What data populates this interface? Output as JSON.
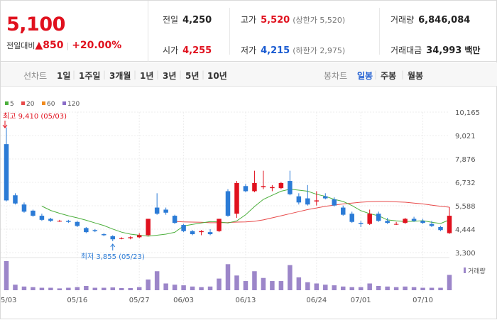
{
  "summary": {
    "price": "5,100",
    "change_label": "전일대비",
    "change_value": "▲850",
    "change_pct": "+20.00%",
    "prev_close": {
      "label": "전일",
      "value": "4,250"
    },
    "open": {
      "label": "시가",
      "value": "4,255"
    },
    "high": {
      "label": "고가",
      "value": "5,520",
      "limit": "(상한가 5,520)"
    },
    "low": {
      "label": "저가",
      "value": "4,215",
      "limit": "(하한가 2,975)"
    },
    "volume": {
      "label": "거래량",
      "value": "6,846,084"
    },
    "amount": {
      "label": "거래대금",
      "value": "34,993",
      "unit": "백만"
    }
  },
  "toolbar": {
    "line_chart_label": "선차트",
    "periods": [
      "1일",
      "1주일",
      "3개월",
      "1년",
      "3년",
      "5년",
      "10년"
    ],
    "candle_label": "봉차트",
    "candle_periods": [
      "일봉",
      "주봉",
      "월봉"
    ],
    "active_candle": "일봉"
  },
  "colors": {
    "up": "#e0111e",
    "down": "#2b7bd6",
    "ma5": "#4caf3c",
    "ma20": "#e84a4a",
    "ma60": "#f08a1c",
    "ma120": "#8a6cc8",
    "volume": "#9c86c9"
  },
  "chart_data": {
    "type": "candlestick",
    "legend": [
      "5",
      "20",
      "60",
      "120"
    ],
    "y_ticks": [
      "10,165",
      "9,021",
      "7,876",
      "6,732",
      "5,588",
      "4,444",
      "3,300"
    ],
    "ylim": [
      3300,
      10165
    ],
    "x_ticks": [
      "05/03",
      "05/16",
      "05/27",
      "06/03",
      "06/13",
      "06/24",
      "07/01",
      "07/10"
    ],
    "x_tick_index": [
      0,
      8,
      15,
      20,
      27,
      35,
      40,
      47
    ],
    "high_label": "최고 9,410 (05/03)",
    "low_label": "최저 3,855 (05/23)",
    "volume_label": "거래량",
    "candles": [
      [
        8600,
        9410,
        5800,
        5850
      ],
      [
        6100,
        6200,
        5650,
        5700
      ],
      [
        5650,
        5750,
        5250,
        5300
      ],
      [
        5350,
        5400,
        5050,
        5100
      ],
      [
        5100,
        5200,
        4850,
        4900
      ],
      [
        4950,
        5000,
        4800,
        4850
      ],
      [
        4850,
        4900,
        4800,
        4850
      ],
      [
        4850,
        4900,
        4750,
        4800
      ],
      [
        4800,
        4850,
        4550,
        4600
      ],
      [
        4500,
        4550,
        4250,
        4300
      ],
      [
        4400,
        4450,
        4300,
        4350
      ],
      [
        4200,
        4250,
        4100,
        4150
      ],
      [
        4100,
        4150,
        3855,
        3950
      ],
      [
        4000,
        4050,
        3950,
        4000
      ],
      [
        4000,
        4100,
        3950,
        4050
      ],
      [
        4050,
        4250,
        4000,
        4150
      ],
      [
        4150,
        4950,
        4100,
        4950
      ],
      [
        5500,
        6200,
        5150,
        5200
      ],
      [
        5400,
        5500,
        5150,
        5250
      ],
      [
        5100,
        5150,
        4700,
        4750
      ],
      [
        4650,
        4700,
        4300,
        4350
      ],
      [
        4350,
        4400,
        4150,
        4200
      ],
      [
        4300,
        4400,
        4150,
        4350
      ],
      [
        4300,
        4450,
        4150,
        4200
      ],
      [
        4350,
        4950,
        4300,
        4950
      ],
      [
        6300,
        6400,
        5050,
        5100
      ],
      [
        5200,
        6800,
        5000,
        6700
      ],
      [
        6550,
        6650,
        6250,
        6300
      ],
      [
        6300,
        7300,
        6250,
        6700
      ],
      [
        6500,
        7300,
        6400,
        6550
      ],
      [
        6450,
        6600,
        6300,
        6500
      ],
      [
        6450,
        6750,
        6400,
        6700
      ],
      [
        6800,
        7300,
        6100,
        6150
      ],
      [
        6050,
        6200,
        5650,
        5750
      ],
      [
        5950,
        6600,
        5600,
        5650
      ],
      [
        5800,
        6300,
        5600,
        5850
      ],
      [
        6050,
        6200,
        5900,
        5950
      ],
      [
        5900,
        6000,
        5550,
        5600
      ],
      [
        5500,
        5600,
        5100,
        5150
      ],
      [
        5200,
        5300,
        4750,
        4800
      ],
      [
        4750,
        4850,
        4550,
        4700
      ],
      [
        4700,
        5400,
        4650,
        5200
      ],
      [
        5200,
        5300,
        4800,
        4850
      ],
      [
        4850,
        5000,
        4700,
        4750
      ],
      [
        4700,
        4800,
        4650,
        4700
      ],
      [
        4750,
        5000,
        4700,
        4950
      ],
      [
        4950,
        5050,
        4800,
        4850
      ],
      [
        4850,
        4950,
        4700,
        4750
      ],
      [
        4700,
        4850,
        4550,
        4600
      ],
      [
        4550,
        4600,
        4350,
        4400
      ],
      [
        4250,
        5520,
        4215,
        5100
      ]
    ],
    "volume": [
      95,
      18,
      12,
      10,
      8,
      8,
      6,
      8,
      10,
      14,
      8,
      8,
      9,
      7,
      7,
      10,
      35,
      62,
      22,
      18,
      16,
      12,
      10,
      12,
      38,
      85,
      48,
      30,
      62,
      40,
      30,
      30,
      82,
      42,
      26,
      22,
      18,
      16,
      12,
      10,
      10,
      22,
      14,
      12,
      10,
      12,
      10,
      8,
      8,
      8,
      50
    ],
    "ma5": [
      null,
      null,
      null,
      null,
      5570,
      5360,
      5220,
      5100,
      5000,
      4880,
      4750,
      4620,
      4450,
      4300,
      4200,
      4150,
      4100,
      4150,
      4200,
      4290,
      4600,
      4680,
      4750,
      4820,
      4800,
      4750,
      4850,
      5150,
      5550,
      5900,
      6100,
      6300,
      6400,
      6350,
      6300,
      6150,
      6050,
      5900,
      5800,
      5600,
      5350,
      5200,
      5100,
      4900,
      4850,
      4820,
      4830,
      4860,
      4780,
      4720,
      4900
    ],
    "ma20": [
      null,
      null,
      null,
      null,
      null,
      null,
      null,
      null,
      null,
      null,
      null,
      null,
      null,
      null,
      null,
      null,
      null,
      null,
      null,
      4820,
      4800,
      4790,
      4780,
      4760,
      4760,
      4770,
      4790,
      4800,
      4830,
      4900,
      5000,
      5100,
      5200,
      5300,
      5400,
      5480,
      5560,
      5620,
      5680,
      5720,
      5760,
      5790,
      5800,
      5800,
      5780,
      5760,
      5720,
      5680,
      5620,
      5560,
      5520
    ]
  }
}
